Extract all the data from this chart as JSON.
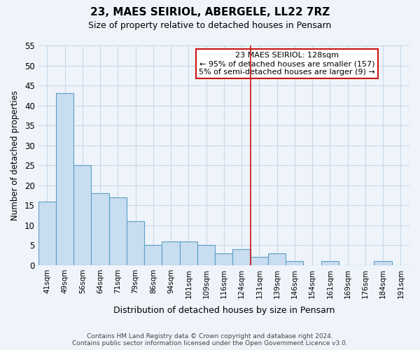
{
  "title": "23, MAES SEIRIOL, ABERGELE, LL22 7RZ",
  "subtitle": "Size of property relative to detached houses in Pensarn",
  "xlabel": "Distribution of detached houses by size in Pensarn",
  "ylabel": "Number of detached properties",
  "bin_labels": [
    "41sqm",
    "49sqm",
    "56sqm",
    "64sqm",
    "71sqm",
    "79sqm",
    "86sqm",
    "94sqm",
    "101sqm",
    "109sqm",
    "116sqm",
    "124sqm",
    "131sqm",
    "139sqm",
    "146sqm",
    "154sqm",
    "161sqm",
    "169sqm",
    "176sqm",
    "184sqm",
    "191sqm"
  ],
  "bin_values": [
    16,
    43,
    25,
    18,
    17,
    11,
    5,
    6,
    6,
    5,
    3,
    4,
    2,
    3,
    1,
    0,
    1,
    0,
    0,
    1,
    0
  ],
  "bar_color": "#c8ddef",
  "bar_edge_color": "#5b9ec9",
  "vline_color": "#cc1111",
  "vline_x": 12.5,
  "ylim": [
    0,
    55
  ],
  "yticks": [
    0,
    5,
    10,
    15,
    20,
    25,
    30,
    35,
    40,
    45,
    50,
    55
  ],
  "annotation_title": "23 MAES SEIRIOL: 128sqm",
  "annotation_line1": "← 95% of detached houses are smaller (157)",
  "annotation_line2": "5% of semi-detached houses are larger (9) →",
  "footer_line1": "Contains HM Land Registry data © Crown copyright and database right 2024.",
  "footer_line2": "Contains public sector information licensed under the Open Government Licence v3.0.",
  "grid_color": "#c8d8e8",
  "background_color": "#eef4fa",
  "title_fontsize": 11,
  "subtitle_fontsize": 9
}
